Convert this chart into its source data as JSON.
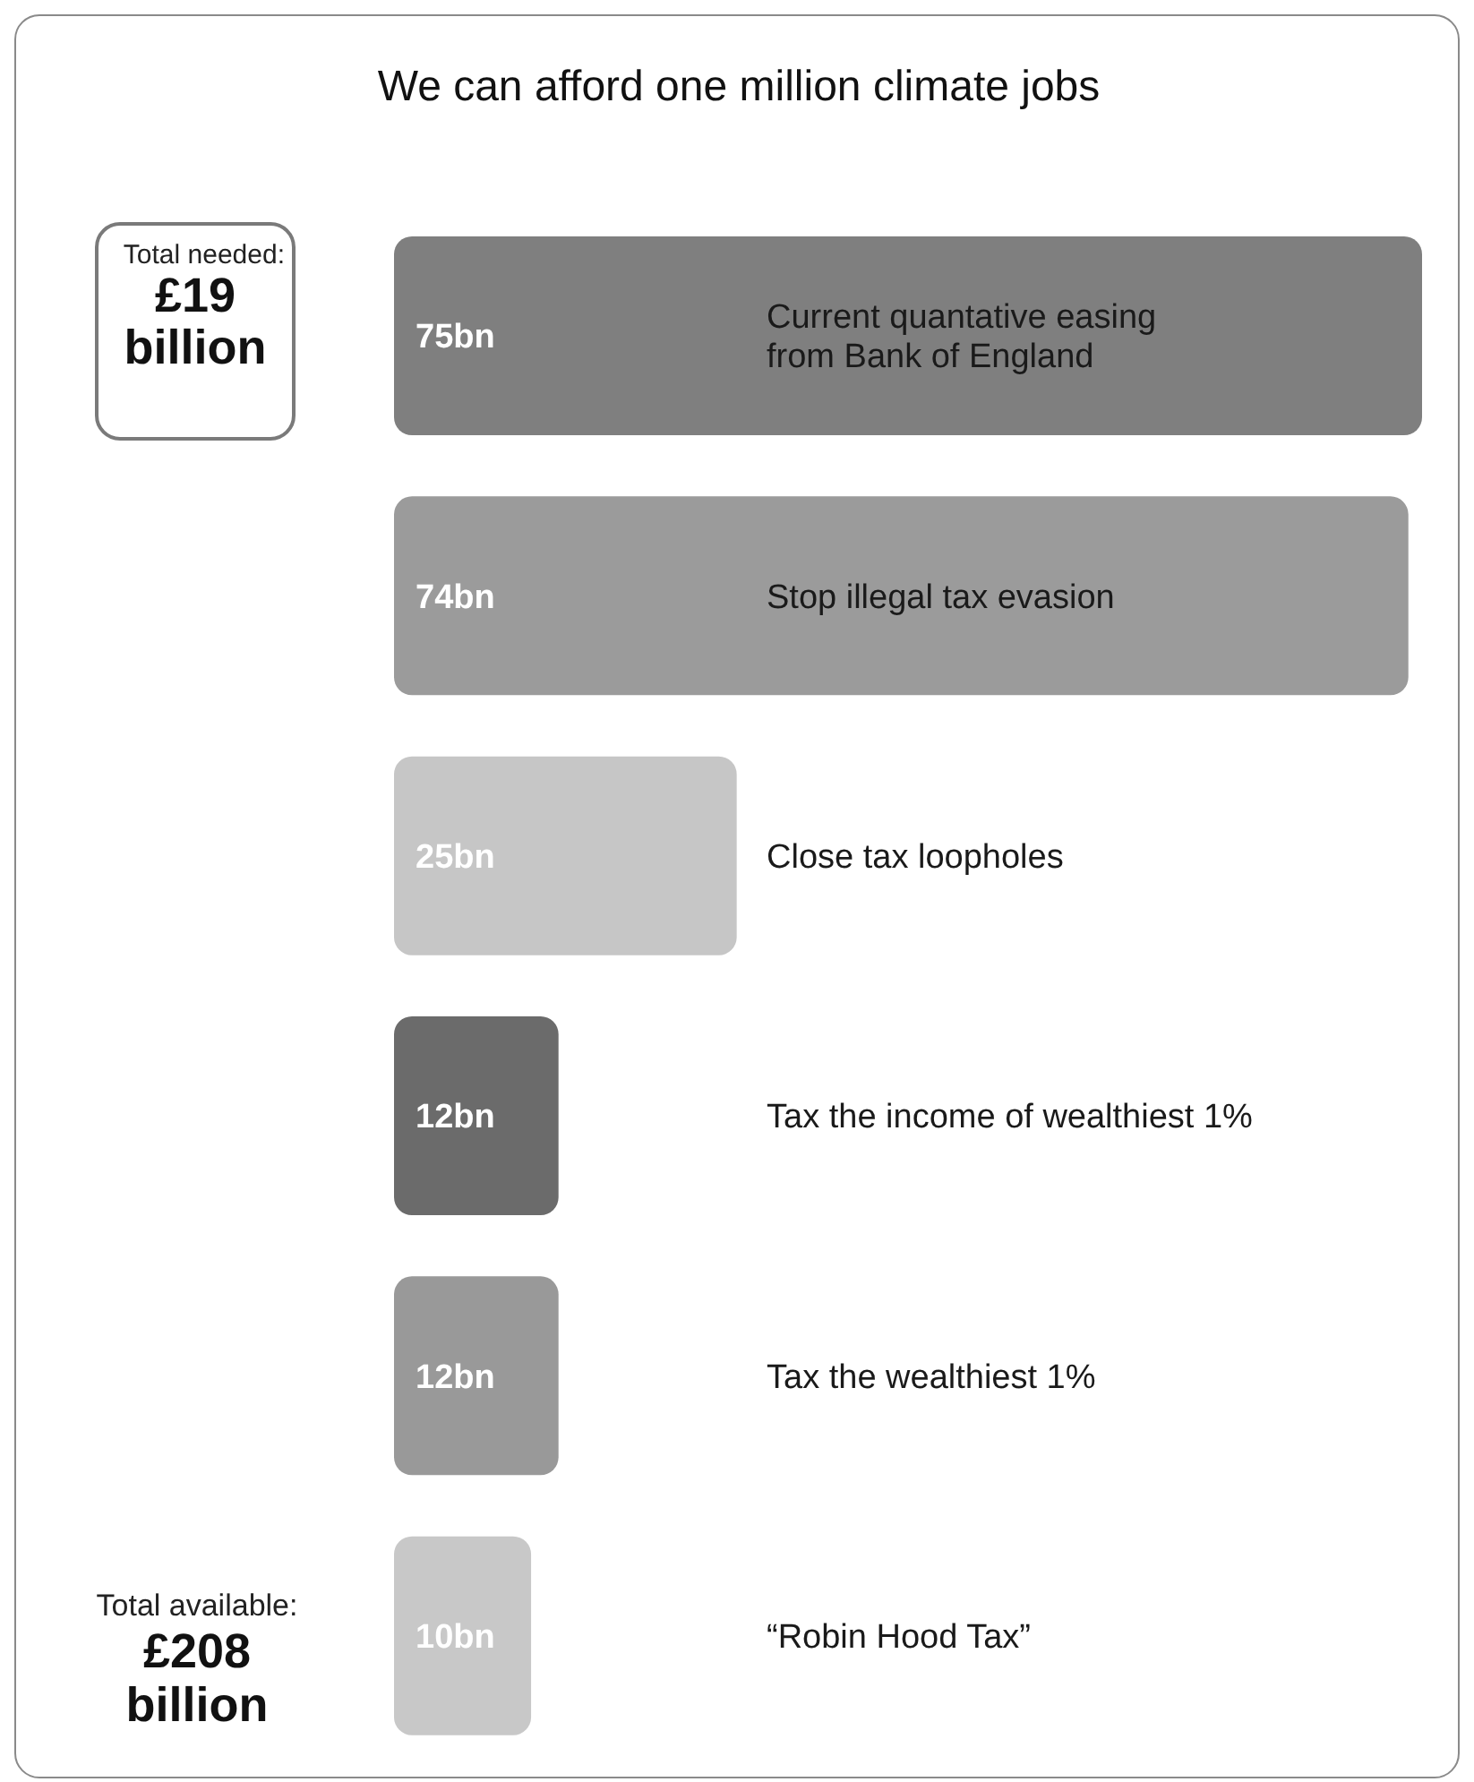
{
  "chart_data": {
    "type": "bar",
    "orientation": "horizontal",
    "title": "We can afford one million climate jobs",
    "categories": [
      "Current quantative easing from Bank of England",
      "Stop illegal tax evasion",
      "Close tax loopholes",
      "Tax the income of wealthiest 1%",
      "Tax the wealthiest 1%",
      "“Robin Hood Tax”"
    ],
    "values": [
      75,
      74,
      25,
      12,
      12,
      10
    ],
    "value_labels": [
      "75bn",
      "74bn",
      "25bn",
      "12bn",
      "12bn",
      "10bn"
    ],
    "colors": [
      "#7f7f7f",
      "#9b9b9b",
      "#c6c6c6",
      "#6b6b6b",
      "#999999",
      "#c8c8c8"
    ],
    "annotations": [
      "Total needed:",
      "£19 billion",
      "Total available:",
      "£208 billion"
    ],
    "tick_labels": false
  }
}
